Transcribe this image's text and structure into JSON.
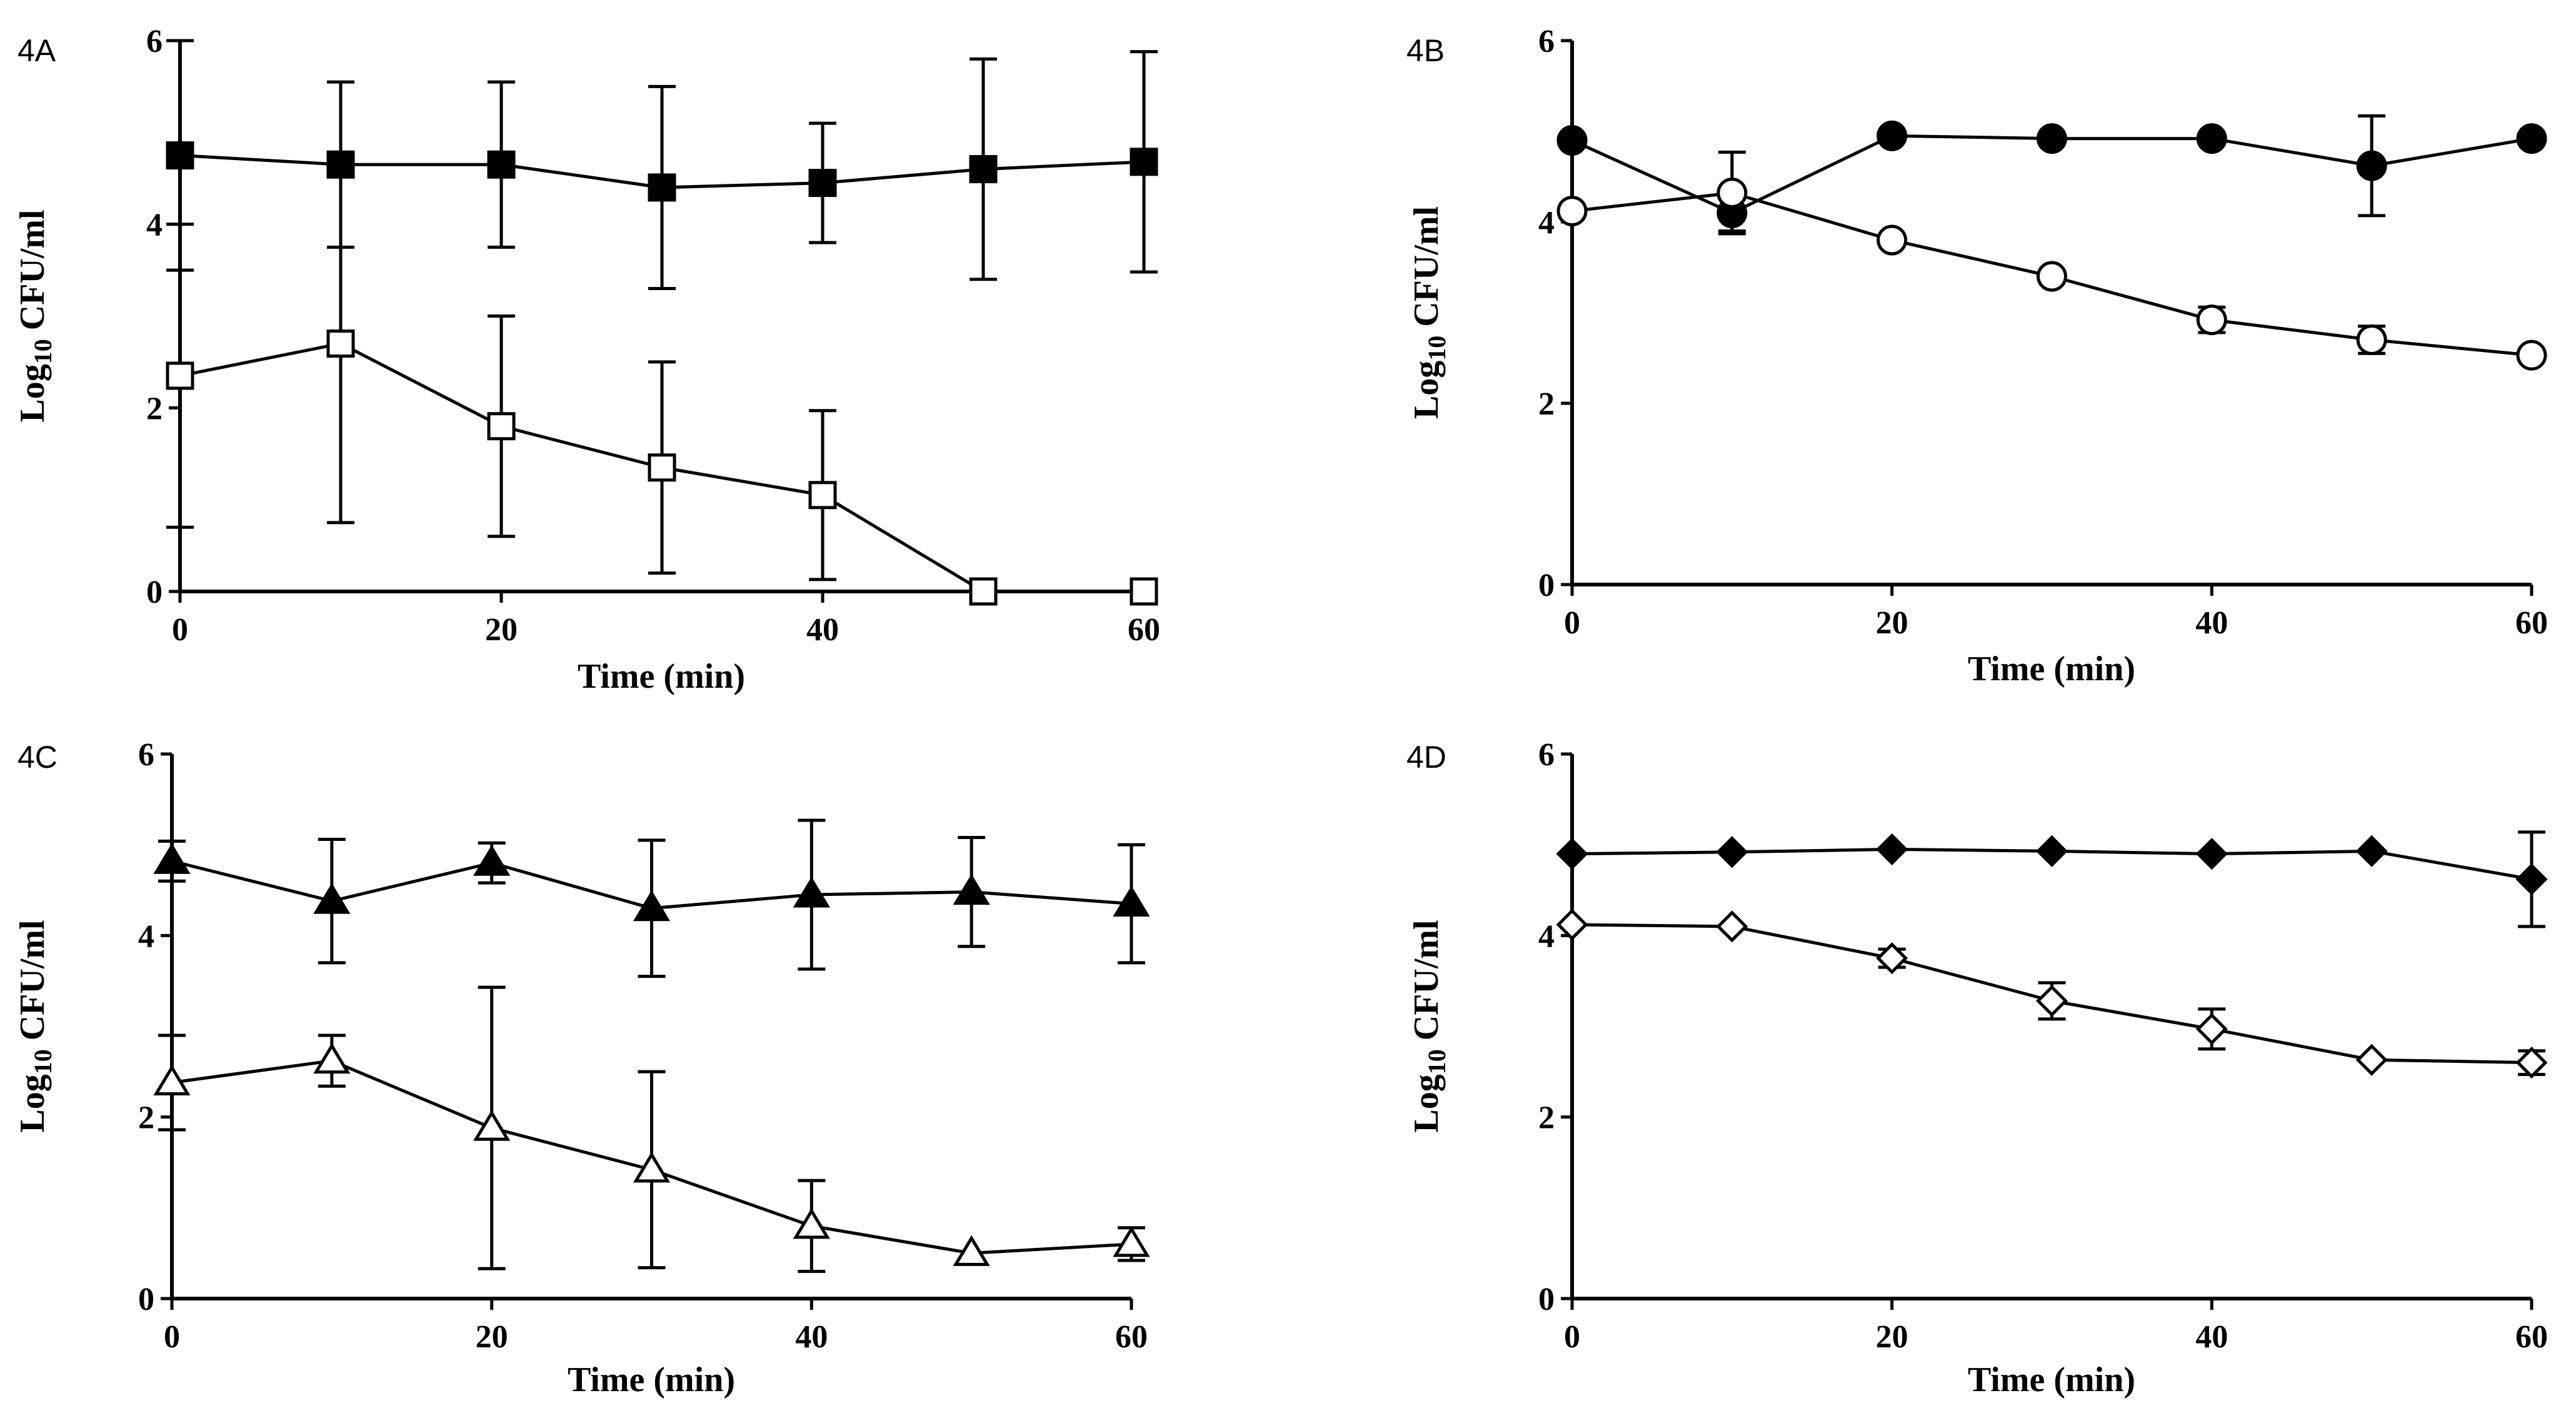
{
  "colors": {
    "ink": "#000000",
    "background": "#ffffff",
    "hollow_fill": "#ffffff"
  },
  "chart_data": [
    {
      "panel": "4A",
      "type": "line",
      "xlabel": "Time (min)",
      "ylabel_base": "Log",
      "ylabel_sub": "10",
      "ylabel_rest": " CFU/ml",
      "xlim": [
        0,
        60
      ],
      "ylim": [
        0,
        6
      ],
      "xticks": [
        0,
        20,
        40,
        60
      ],
      "yticks": [
        0,
        2,
        4,
        6
      ],
      "grid": false,
      "series": [
        {
          "marker": "square",
          "filled": true,
          "x": [
            0,
            10,
            20,
            30,
            40,
            50,
            60
          ],
          "y": [
            4.75,
            4.65,
            4.65,
            4.4,
            4.45,
            4.6,
            4.68
          ],
          "err": [
            1.25,
            0.9,
            0.9,
            1.1,
            0.65,
            1.2,
            1.2
          ]
        },
        {
          "marker": "square",
          "filled": false,
          "x": [
            0,
            10,
            20,
            30,
            40,
            50,
            60
          ],
          "y": [
            2.35,
            2.7,
            1.8,
            1.35,
            1.05,
            0.0,
            0.0
          ],
          "err": [
            1.65,
            1.95,
            1.2,
            1.15,
            0.92,
            0,
            0
          ]
        }
      ]
    },
    {
      "panel": "4B",
      "type": "line",
      "xlabel": "Time (min)",
      "ylabel_base": "Log",
      "ylabel_sub": "10",
      "ylabel_rest": " CFU/ml",
      "xlim": [
        0,
        60
      ],
      "ylim": [
        0,
        6
      ],
      "xticks": [
        0,
        20,
        40,
        60
      ],
      "yticks": [
        0,
        2,
        4,
        6
      ],
      "grid": false,
      "series": [
        {
          "marker": "circle",
          "filled": true,
          "x": [
            0,
            10,
            20,
            30,
            40,
            50,
            60
          ],
          "y": [
            4.9,
            4.1,
            4.95,
            4.92,
            4.92,
            4.62,
            4.92
          ],
          "err": [
            0,
            0.2,
            0,
            0,
            0,
            0.55,
            0
          ]
        },
        {
          "marker": "circle",
          "filled": false,
          "x": [
            0,
            10,
            20,
            30,
            40,
            50,
            60
          ],
          "y": [
            4.12,
            4.32,
            3.8,
            3.4,
            2.92,
            2.7,
            2.53
          ],
          "err": [
            0,
            0.45,
            0,
            0,
            0.14,
            0.15,
            0
          ]
        }
      ]
    },
    {
      "panel": "4C",
      "type": "line",
      "xlabel": "Time (min)",
      "ylabel_base": "Log",
      "ylabel_sub": "10",
      "ylabel_rest": " CFU/ml",
      "xlim": [
        0,
        60
      ],
      "ylim": [
        0,
        6
      ],
      "xticks": [
        0,
        20,
        40,
        60
      ],
      "yticks": [
        0,
        2,
        4,
        6
      ],
      "grid": false,
      "series": [
        {
          "marker": "triangle",
          "filled": true,
          "x": [
            0,
            10,
            20,
            30,
            40,
            50,
            60
          ],
          "y": [
            4.82,
            4.38,
            4.8,
            4.3,
            4.45,
            4.48,
            4.35
          ],
          "err": [
            0.22,
            0.68,
            0.22,
            0.75,
            0.82,
            0.6,
            0.65
          ]
        },
        {
          "marker": "triangle",
          "filled": false,
          "x": [
            0,
            10,
            20,
            30,
            40,
            50,
            60
          ],
          "y": [
            2.38,
            2.62,
            1.88,
            1.42,
            0.8,
            0.5,
            0.6
          ],
          "err": [
            0.52,
            0.28,
            1.55,
            1.08,
            0.5,
            0,
            0.18
          ]
        }
      ]
    },
    {
      "panel": "4D",
      "type": "line",
      "xlabel": "Time (min)",
      "ylabel_base": "Log",
      "ylabel_sub": "10",
      "ylabel_rest": " CFU/ml",
      "xlim": [
        0,
        60
      ],
      "ylim": [
        0,
        6
      ],
      "xticks": [
        0,
        20,
        40,
        60
      ],
      "yticks": [
        0,
        2,
        4,
        6
      ],
      "grid": false,
      "series": [
        {
          "marker": "diamond",
          "filled": true,
          "x": [
            0,
            10,
            20,
            30,
            40,
            50,
            60
          ],
          "y": [
            4.9,
            4.92,
            4.95,
            4.93,
            4.9,
            4.93,
            4.62
          ],
          "err": [
            0,
            0,
            0,
            0,
            0,
            0,
            0.52
          ]
        },
        {
          "marker": "diamond",
          "filled": false,
          "x": [
            0,
            10,
            20,
            30,
            40,
            50,
            60
          ],
          "y": [
            4.12,
            4.1,
            3.75,
            3.28,
            2.97,
            2.63,
            2.6
          ],
          "err": [
            0,
            0,
            0.1,
            0.2,
            0.22,
            0,
            0.13
          ]
        }
      ]
    }
  ]
}
